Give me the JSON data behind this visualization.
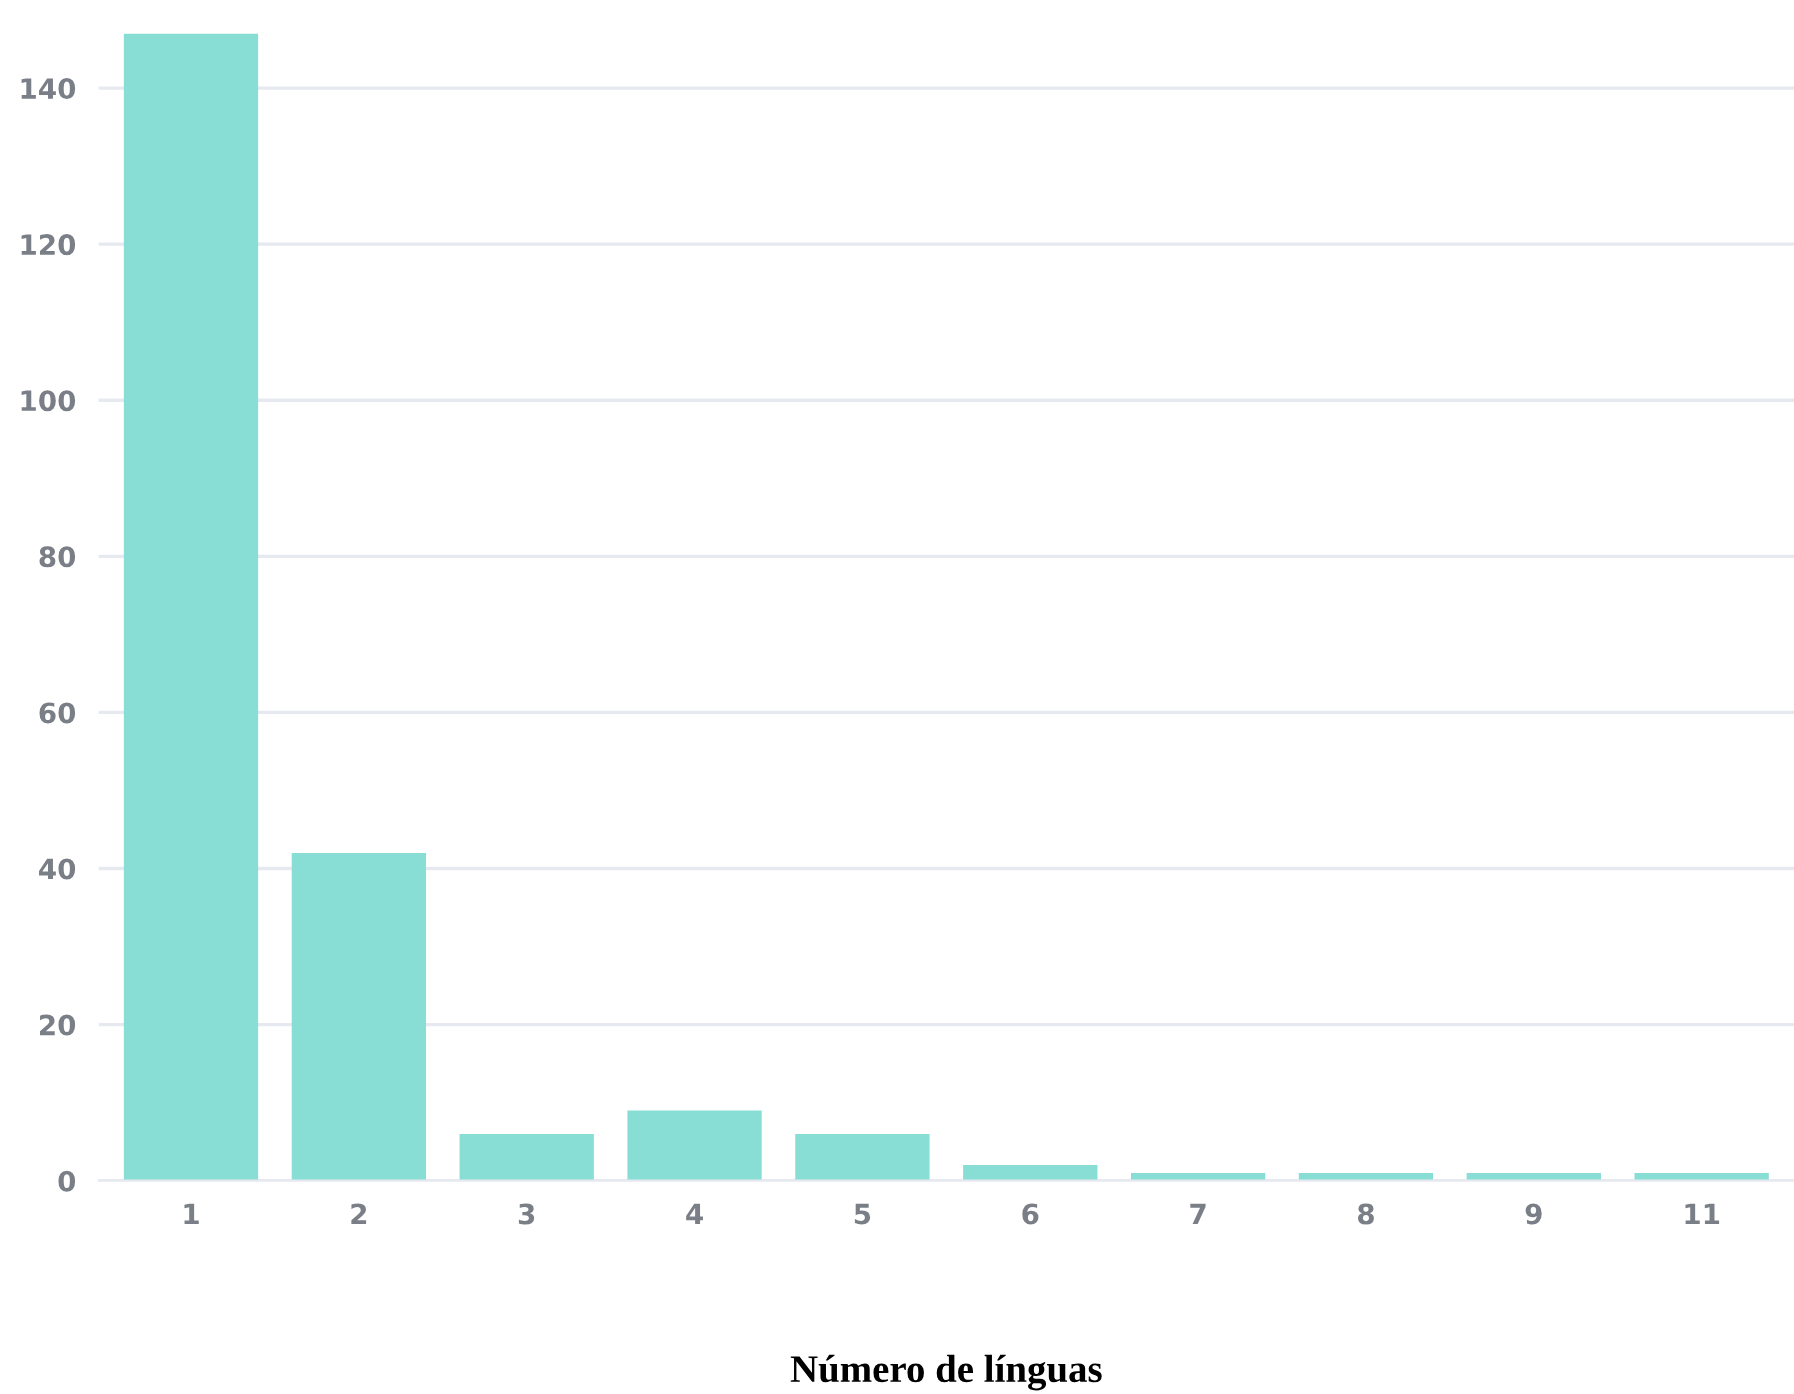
{
  "chart_data": {
    "type": "bar",
    "xlabel": "Número de línguas",
    "categories": [
      "1",
      "2",
      "3",
      "4",
      "5",
      "6",
      "7",
      "8",
      "9",
      "11"
    ],
    "values": [
      147,
      42,
      6,
      9,
      6,
      2,
      1,
      1,
      1,
      1
    ],
    "color": "#88ddd4",
    "ylim": [
      0,
      147
    ],
    "yticks": [
      0,
      20,
      40,
      60,
      80,
      100,
      120,
      140
    ],
    "grid": "y"
  }
}
